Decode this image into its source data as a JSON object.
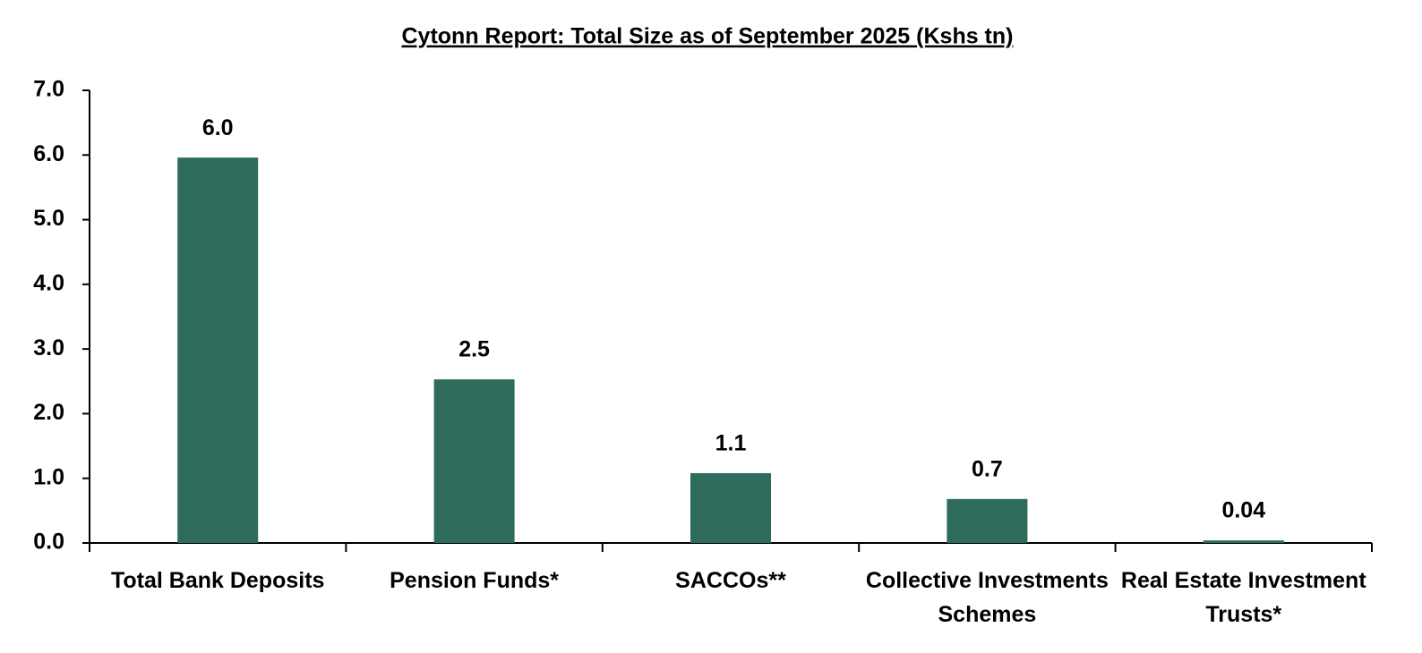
{
  "chart_data": {
    "type": "bar",
    "title": "Cytonn Report: Total Size as of September 2025 (Kshs tn)",
    "categories": [
      "Total Bank Deposits",
      "Pension Funds*",
      "SACCOs**",
      "Collective Investments Schemes",
      "Real Estate Investment Trusts*"
    ],
    "values": [
      5.96,
      2.53,
      1.08,
      0.68,
      0.04
    ],
    "value_labels": [
      "6.0",
      "2.5",
      "1.1",
      "0.7",
      "0.04"
    ],
    "color": "#2e6b5c",
    "ylim": [
      0,
      7
    ],
    "yticks": [
      {
        "value": 0,
        "label": "0.0"
      },
      {
        "value": 1,
        "label": "1.0"
      },
      {
        "value": 2,
        "label": "2.0"
      },
      {
        "value": 3,
        "label": "3.0"
      },
      {
        "value": 4,
        "label": "4.0"
      },
      {
        "value": 5,
        "label": "5.0"
      },
      {
        "value": 6,
        "label": "6.0"
      },
      {
        "value": 7,
        "label": "7.0"
      }
    ],
    "grid": false
  }
}
